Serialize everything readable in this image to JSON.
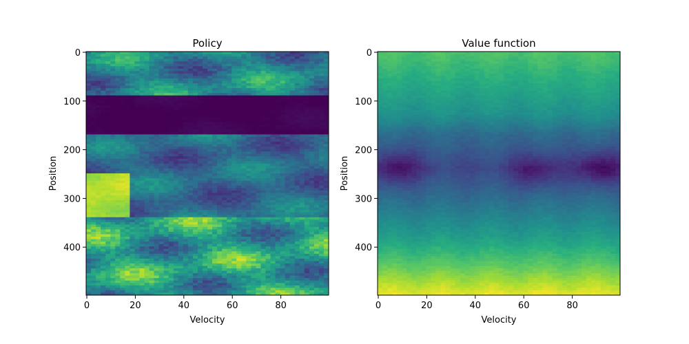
{
  "chart_data": [
    {
      "type": "heatmap",
      "title": "Policy",
      "xlabel": "Velocity",
      "ylabel": "Position",
      "colormap": "viridis",
      "xlim": [
        0,
        100
      ],
      "ylim": [
        500,
        0
      ],
      "xticks": [
        0,
        20,
        40,
        60,
        80
      ],
      "yticks": [
        0,
        100,
        200,
        300,
        400
      ],
      "bands": [
        {
          "y": [
            0,
            90
          ],
          "level": 0.45,
          "variation": 0.25
        },
        {
          "y": [
            90,
            170
          ],
          "level": 0.0,
          "variation": 0.03
        },
        {
          "y": [
            170,
            340
          ],
          "level": 0.35,
          "variation": 0.18
        },
        {
          "y": [
            250,
            340
          ],
          "x": [
            0,
            18
          ],
          "level": 0.9,
          "variation": 0.08
        },
        {
          "y": [
            340,
            500
          ],
          "level": 0.55,
          "variation": 0.3
        }
      ]
    },
    {
      "type": "heatmap",
      "title": "Value function",
      "xlabel": "Velocity",
      "ylabel": "Position",
      "colormap": "viridis",
      "xlim": [
        0,
        100
      ],
      "ylim": [
        500,
        0
      ],
      "xticks": [
        0,
        20,
        40,
        60,
        80
      ],
      "yticks": [
        0,
        100,
        200,
        300,
        400
      ],
      "profile": [
        {
          "y": 0,
          "level": 0.72
        },
        {
          "y": 60,
          "level": 0.62
        },
        {
          "y": 130,
          "level": 0.5
        },
        {
          "y": 170,
          "level": 0.35
        },
        {
          "y": 240,
          "level": 0.22
        },
        {
          "y": 320,
          "level": 0.4
        },
        {
          "y": 380,
          "level": 0.55
        },
        {
          "y": 440,
          "level": 0.75
        },
        {
          "y": 500,
          "level": 0.97
        }
      ],
      "lows": [
        {
          "x": 8,
          "y": 240,
          "depth": 0.18
        },
        {
          "x": 65,
          "y": 245,
          "depth": 0.16
        },
        {
          "x": 92,
          "y": 240,
          "depth": 0.2
        }
      ]
    }
  ]
}
